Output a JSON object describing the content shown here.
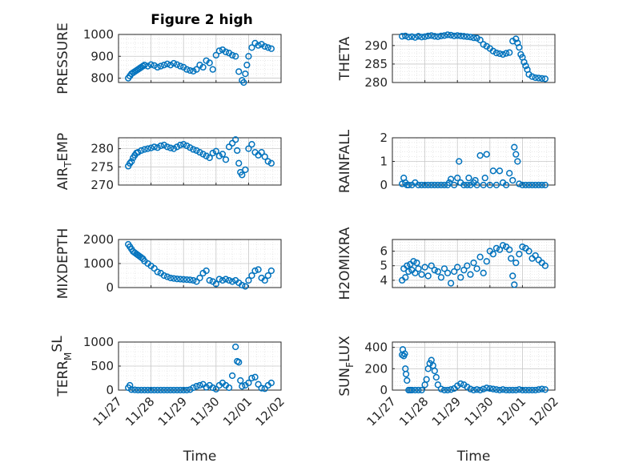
{
  "figure": {
    "title": "Figure 2 high"
  },
  "colors": {
    "marker": "#0072BD",
    "axis": "#262626",
    "grid": "#d9d9d9"
  },
  "x_ticks": [
    "11/27",
    "11/28",
    "11/29",
    "11/30",
    "12/01",
    "12/02"
  ],
  "chart_data": [
    {
      "type": "scatter",
      "title": "Figure 2 high",
      "ylabel": "PRESSURE",
      "ylabel_sub": "",
      "ylabel_tail": "",
      "ylabel_mode": "plain",
      "xlabel": "",
      "xlim": [
        0,
        5
      ],
      "ylim": [
        780,
        1000
      ],
      "yticks": [
        800,
        900,
        1000
      ],
      "grid": true,
      "x": [
        0.3,
        0.35,
        0.4,
        0.45,
        0.5,
        0.55,
        0.6,
        0.65,
        0.7,
        0.75,
        0.8,
        0.9,
        1.0,
        1.1,
        1.2,
        1.3,
        1.4,
        1.5,
        1.6,
        1.7,
        1.8,
        1.9,
        2.0,
        2.1,
        2.2,
        2.3,
        2.4,
        2.5,
        2.6,
        2.7,
        2.8,
        2.9,
        3.0,
        3.1,
        3.2,
        3.3,
        3.4,
        3.5,
        3.6,
        3.7,
        3.8,
        3.85,
        3.9,
        3.95,
        4.0,
        4.1,
        4.2,
        4.3,
        4.4,
        4.5,
        4.6,
        4.7
      ],
      "y": [
        800,
        810,
        820,
        825,
        830,
        835,
        840,
        845,
        850,
        855,
        860,
        855,
        862,
        858,
        850,
        855,
        860,
        865,
        860,
        868,
        862,
        855,
        850,
        840,
        835,
        832,
        840,
        860,
        850,
        880,
        870,
        840,
        905,
        925,
        930,
        920,
        915,
        905,
        900,
        830,
        790,
        780,
        820,
        860,
        900,
        940,
        960,
        950,
        955,
        945,
        940,
        935
      ]
    },
    {
      "type": "scatter",
      "title": "",
      "ylabel": "THETA",
      "ylabel_sub": "",
      "ylabel_tail": "",
      "ylabel_mode": "plain",
      "xlabel": "",
      "xlim": [
        0,
        5
      ],
      "ylim": [
        280,
        293
      ],
      "yticks": [
        280,
        285,
        290
      ],
      "grid": true,
      "x": [
        0.3,
        0.4,
        0.5,
        0.6,
        0.7,
        0.8,
        0.9,
        1.0,
        1.1,
        1.2,
        1.3,
        1.4,
        1.5,
        1.6,
        1.7,
        1.8,
        1.9,
        2.0,
        2.1,
        2.2,
        2.3,
        2.4,
        2.5,
        2.6,
        2.7,
        2.8,
        2.9,
        3.0,
        3.1,
        3.2,
        3.3,
        3.4,
        3.5,
        3.6,
        3.7,
        3.8,
        3.85,
        3.9,
        3.95,
        4.0,
        4.05,
        4.1,
        4.15,
        4.2,
        4.3,
        4.4,
        4.5,
        4.6,
        4.7
      ],
      "y": [
        292.5,
        292.6,
        292.3,
        292.4,
        292.2,
        292.5,
        292.3,
        292.4,
        292.6,
        292.7,
        292.5,
        292.4,
        292.6,
        292.7,
        292.9,
        292.8,
        292.6,
        292.7,
        292.6,
        292.5,
        292.4,
        292.3,
        292.1,
        292.0,
        291.5,
        290.3,
        289.8,
        289.2,
        288.5,
        288.0,
        287.8,
        287.6,
        287.9,
        288.1,
        291.2,
        291.8,
        290.7,
        289.5,
        287.6,
        286.8,
        285.5,
        284.5,
        283.5,
        282.2,
        281.6,
        281.3,
        281.2,
        281.1,
        281.0
      ]
    },
    {
      "type": "scatter",
      "title": "",
      "ylabel": "AIR",
      "ylabel_sub": "T",
      "ylabel_tail": "EMP",
      "ylabel_mode": "sub",
      "xlabel": "",
      "xlim": [
        0,
        5
      ],
      "ylim": [
        270,
        283
      ],
      "yticks": [
        270,
        275,
        280
      ],
      "grid": true,
      "x": [
        0.3,
        0.35,
        0.4,
        0.45,
        0.5,
        0.55,
        0.6,
        0.7,
        0.8,
        0.9,
        1.0,
        1.1,
        1.2,
        1.3,
        1.4,
        1.5,
        1.6,
        1.7,
        1.8,
        1.9,
        2.0,
        2.1,
        2.2,
        2.3,
        2.4,
        2.5,
        2.6,
        2.7,
        2.8,
        2.9,
        3.0,
        3.1,
        3.2,
        3.3,
        3.4,
        3.5,
        3.6,
        3.65,
        3.7,
        3.75,
        3.8,
        3.9,
        4.0,
        4.1,
        4.2,
        4.3,
        4.4,
        4.5,
        4.6,
        4.7
      ],
      "y": [
        275.2,
        276.0,
        276.5,
        277.5,
        278.2,
        278.8,
        279.0,
        279.5,
        279.8,
        280.0,
        280.2,
        280.5,
        280.3,
        280.8,
        281.0,
        280.5,
        280.2,
        280.0,
        280.5,
        281.0,
        281.2,
        280.8,
        280.3,
        279.8,
        279.5,
        279.0,
        278.5,
        278.0,
        277.5,
        278.8,
        279.3,
        278.0,
        278.5,
        277.0,
        280.5,
        281.5,
        282.5,
        279.5,
        276.0,
        273.5,
        272.8,
        274.2,
        280.0,
        281.2,
        279.0,
        278.2,
        279.0,
        277.8,
        276.5,
        276.0
      ]
    },
    {
      "type": "scatter",
      "title": "",
      "ylabel": "RAINFALL",
      "ylabel_sub": "",
      "ylabel_tail": "",
      "ylabel_mode": "plain",
      "xlabel": "",
      "xlim": [
        0,
        5
      ],
      "ylim": [
        0,
        2
      ],
      "yticks": [
        0,
        1,
        2
      ],
      "grid": true,
      "x": [
        0.3,
        0.35,
        0.4,
        0.45,
        0.5,
        0.6,
        0.7,
        0.8,
        0.9,
        1.0,
        1.1,
        1.2,
        1.3,
        1.4,
        1.5,
        1.6,
        1.7,
        1.75,
        1.8,
        1.9,
        2.0,
        2.05,
        2.1,
        2.2,
        2.3,
        2.35,
        2.4,
        2.5,
        2.55,
        2.6,
        2.7,
        2.8,
        2.85,
        2.9,
        3.0,
        3.1,
        3.2,
        3.3,
        3.4,
        3.5,
        3.6,
        3.7,
        3.75,
        3.8,
        3.85,
        3.9,
        4.0,
        4.1,
        4.2,
        4.3,
        4.4,
        4.5,
        4.6,
        4.7
      ],
      "y": [
        0.05,
        0.3,
        0.1,
        0,
        0,
        0,
        0.1,
        0,
        0,
        0,
        0,
        0,
        0,
        0,
        0,
        0,
        0,
        0.1,
        0.25,
        0,
        0.3,
        1.0,
        0.1,
        0,
        0,
        0.3,
        0,
        0.1,
        0.2,
        0,
        1.25,
        0,
        0.3,
        1.3,
        0,
        0.6,
        0,
        0.6,
        0.1,
        0,
        0.5,
        0.2,
        1.6,
        1.3,
        1.0,
        0.05,
        0,
        0,
        0,
        0,
        0,
        0,
        0,
        0
      ]
    },
    {
      "type": "scatter",
      "title": "",
      "ylabel": "MIXDEPTH",
      "ylabel_sub": "",
      "ylabel_tail": "",
      "ylabel_mode": "plain",
      "xlabel": "",
      "xlim": [
        0,
        5
      ],
      "ylim": [
        0,
        2000
      ],
      "yticks": [
        0,
        1000,
        2000
      ],
      "grid": true,
      "x": [
        0.3,
        0.35,
        0.4,
        0.45,
        0.5,
        0.55,
        0.6,
        0.65,
        0.7,
        0.75,
        0.8,
        0.9,
        1.0,
        1.1,
        1.2,
        1.3,
        1.4,
        1.5,
        1.6,
        1.7,
        1.8,
        1.9,
        2.0,
        2.1,
        2.2,
        2.3,
        2.4,
        2.5,
        2.6,
        2.7,
        2.8,
        2.9,
        3.0,
        3.1,
        3.2,
        3.3,
        3.4,
        3.5,
        3.6,
        3.7,
        3.8,
        3.9,
        4.0,
        4.1,
        4.2,
        4.3,
        4.4,
        4.5,
        4.6,
        4.7
      ],
      "y": [
        1800,
        1700,
        1600,
        1500,
        1450,
        1400,
        1350,
        1300,
        1250,
        1200,
        1100,
        1000,
        900,
        800,
        650,
        600,
        500,
        450,
        400,
        380,
        360,
        350,
        340,
        330,
        320,
        300,
        250,
        400,
        600,
        700,
        300,
        250,
        150,
        350,
        300,
        350,
        300,
        250,
        300,
        200,
        100,
        50,
        300,
        500,
        700,
        750,
        400,
        300,
        500,
        700
      ]
    },
    {
      "type": "scatter",
      "title": "",
      "ylabel": "H2OMIXRA",
      "ylabel_sub": "",
      "ylabel_tail": "",
      "ylabel_mode": "plain",
      "xlabel": "",
      "xlim": [
        0,
        5
      ],
      "ylim": [
        3.5,
        6.8
      ],
      "yticks": [
        4,
        5,
        6
      ],
      "grid": true,
      "x": [
        0.3,
        0.35,
        0.4,
        0.45,
        0.5,
        0.55,
        0.6,
        0.65,
        0.7,
        0.75,
        0.8,
        0.9,
        1.0,
        1.1,
        1.2,
        1.3,
        1.4,
        1.5,
        1.6,
        1.7,
        1.8,
        1.9,
        2.0,
        2.1,
        2.2,
        2.3,
        2.4,
        2.5,
        2.6,
        2.7,
        2.8,
        2.9,
        3.0,
        3.1,
        3.2,
        3.3,
        3.4,
        3.5,
        3.6,
        3.65,
        3.7,
        3.75,
        3.8,
        3.9,
        4.0,
        4.1,
        4.2,
        4.3,
        4.4,
        4.5,
        4.6,
        4.7
      ],
      "y": [
        4.0,
        4.8,
        4.2,
        5.0,
        4.6,
        5.1,
        4.7,
        5.3,
        4.5,
        5.2,
        4.8,
        4.4,
        4.9,
        4.3,
        5.0,
        4.7,
        4.6,
        4.2,
        4.8,
        4.5,
        3.8,
        4.6,
        4.9,
        4.2,
        4.7,
        5.0,
        4.4,
        5.2,
        4.8,
        5.6,
        4.5,
        5.3,
        6.0,
        5.8,
        6.2,
        6.1,
        6.4,
        6.3,
        6.1,
        5.5,
        4.3,
        3.7,
        5.2,
        5.8,
        6.3,
        6.2,
        6.0,
        5.5,
        5.7,
        5.4,
        5.2,
        5.0
      ]
    },
    {
      "type": "scatter",
      "title": "",
      "ylabel": "TERR",
      "ylabel_sub": "M",
      "ylabel_tail": "SL",
      "ylabel_mode": "subsup",
      "xlabel": "Time",
      "xlim": [
        0,
        5
      ],
      "ylim": [
        0,
        1000
      ],
      "yticks": [
        0,
        500,
        1000
      ],
      "grid": true,
      "x": [
        0.3,
        0.35,
        0.4,
        0.5,
        0.6,
        0.7,
        0.8,
        0.9,
        1.0,
        1.1,
        1.2,
        1.3,
        1.4,
        1.5,
        1.6,
        1.7,
        1.8,
        1.9,
        2.0,
        2.1,
        2.2,
        2.3,
        2.4,
        2.5,
        2.6,
        2.7,
        2.8,
        2.9,
        3.0,
        3.1,
        3.2,
        3.3,
        3.4,
        3.5,
        3.6,
        3.65,
        3.7,
        3.75,
        3.8,
        3.9,
        4.0,
        4.1,
        4.2,
        4.3,
        4.4,
        4.5,
        4.6,
        4.7
      ],
      "y": [
        50,
        100,
        10,
        5,
        0,
        0,
        0,
        0,
        0,
        0,
        0,
        0,
        0,
        0,
        0,
        0,
        0,
        0,
        0,
        0,
        10,
        50,
        80,
        100,
        120,
        60,
        100,
        50,
        20,
        100,
        150,
        100,
        50,
        300,
        900,
        600,
        580,
        200,
        80,
        100,
        150,
        250,
        270,
        120,
        40,
        30,
        100,
        150
      ]
    },
    {
      "type": "scatter",
      "title": "",
      "ylabel": "SUN",
      "ylabel_sub": "F",
      "ylabel_tail": "LUX",
      "ylabel_mode": "sub",
      "xlabel": "Time",
      "xlim": [
        0,
        5
      ],
      "ylim": [
        0,
        450
      ],
      "yticks": [
        0,
        200,
        400
      ],
      "grid": true,
      "x": [
        0.3,
        0.32,
        0.35,
        0.38,
        0.4,
        0.42,
        0.45,
        0.5,
        0.55,
        0.6,
        0.7,
        0.8,
        0.9,
        1.0,
        1.05,
        1.1,
        1.15,
        1.2,
        1.25,
        1.3,
        1.35,
        1.4,
        1.5,
        1.6,
        1.7,
        1.8,
        1.9,
        2.0,
        2.1,
        2.2,
        2.3,
        2.4,
        2.5,
        2.6,
        2.7,
        2.8,
        2.9,
        3.0,
        3.1,
        3.2,
        3.3,
        3.4,
        3.5,
        3.6,
        3.7,
        3.8,
        3.9,
        4.0,
        4.1,
        4.2,
        4.3,
        4.4,
        4.5,
        4.6,
        4.7
      ],
      "y": [
        330,
        380,
        320,
        340,
        200,
        150,
        90,
        0,
        0,
        0,
        0,
        0,
        0,
        50,
        100,
        200,
        250,
        280,
        230,
        180,
        120,
        50,
        10,
        0,
        0,
        5,
        15,
        40,
        60,
        50,
        30,
        10,
        0,
        5,
        0,
        10,
        20,
        15,
        10,
        5,
        0,
        5,
        0,
        0,
        0,
        0,
        5,
        0,
        0,
        0,
        0,
        0,
        5,
        10,
        5
      ]
    }
  ]
}
